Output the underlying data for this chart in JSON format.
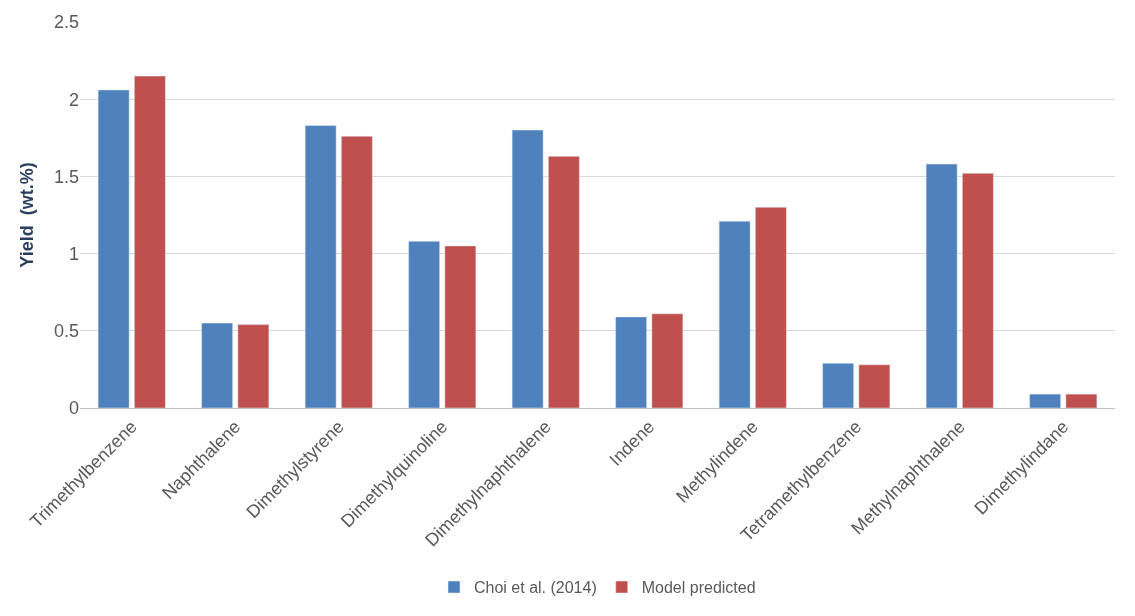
{
  "chart_data": {
    "type": "bar",
    "ylabel": "Yield  (wt.%)",
    "categories": [
      "Trimethylbenzene",
      "Naphthalene",
      "Dimethylstyrene",
      "Dimethylquinoline",
      "Dimethylnaphthalene",
      "Indene",
      "Methylindene",
      "Tetramethylbenzene",
      "Methylnaphthalene",
      "Dimethylindane"
    ],
    "series": [
      {
        "name": "Choi et al. (2014)",
        "color": "#4f81bd",
        "values": [
          2.06,
          0.55,
          1.83,
          1.08,
          1.8,
          0.59,
          1.21,
          0.29,
          1.58,
          0.09
        ]
      },
      {
        "name": "Model predicted",
        "color": "#c0504d",
        "values": [
          2.15,
          0.54,
          1.76,
          1.05,
          1.63,
          0.61,
          1.3,
          0.28,
          1.52,
          0.09
        ]
      }
    ],
    "ylim": [
      0,
      2.5
    ],
    "yticks": [
      0,
      0.5,
      1,
      1.5,
      2,
      2.5
    ],
    "grid": "y",
    "legend": "bottom"
  }
}
